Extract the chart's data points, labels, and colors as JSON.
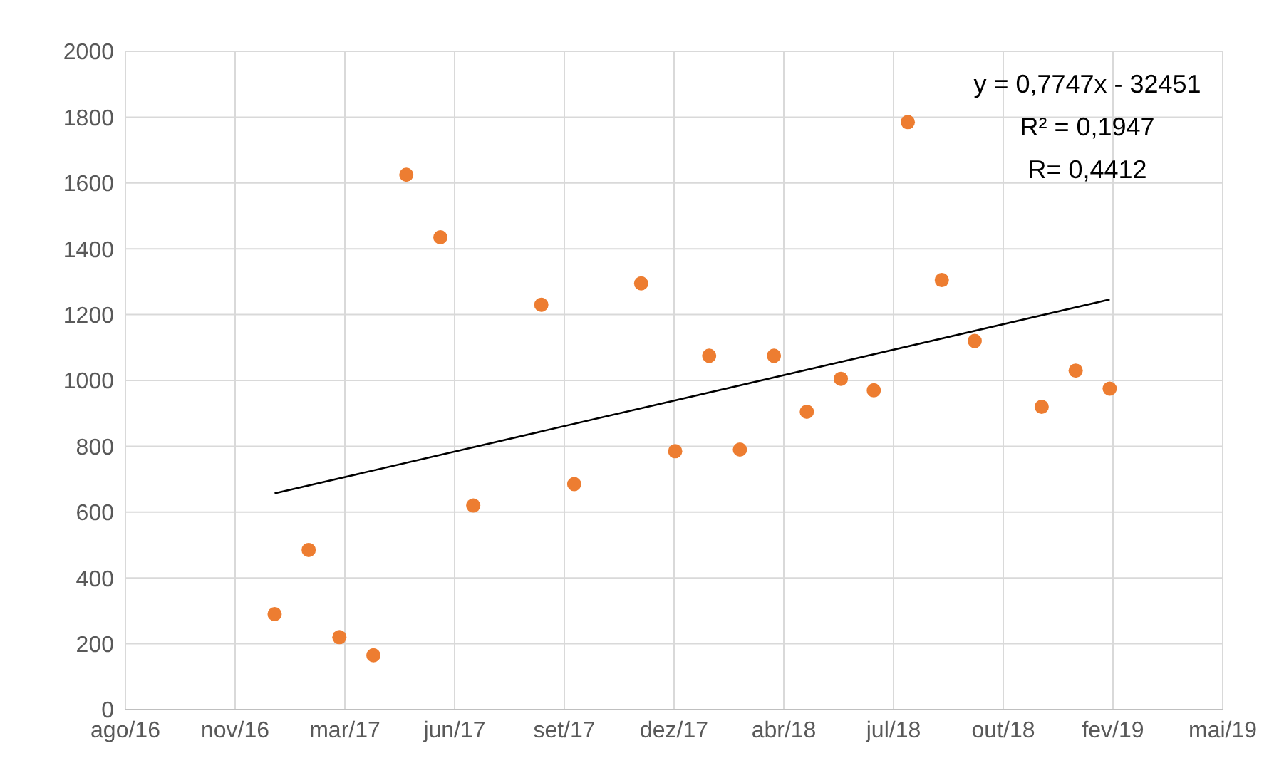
{
  "chart_data": {
    "type": "scatter",
    "annotations": [
      "y = 0,7747x - 32451",
      "R² = 0,1947",
      "R= 0,4412"
    ],
    "series": [
      {
        "marker": "circle",
        "color": "#ed7d31",
        "x": [
          "2017-01-01",
          "2017-02-01",
          "2017-03-01",
          "2017-04-01",
          "2017-05-01",
          "2017-06-01",
          "2017-07-01",
          "2017-09-01",
          "2017-10-01",
          "2017-12-01",
          "2018-01-01",
          "2018-02-01",
          "2018-03-01",
          "2018-04-01",
          "2018-05-01",
          "2018-06-01",
          "2018-07-01",
          "2018-08-01",
          "2018-09-01",
          "2018-10-01",
          "2018-12-01",
          "2019-01-01",
          "2019-02-01"
        ],
        "values": [
          290,
          485,
          220,
          165,
          1625,
          1435,
          620,
          1230,
          685,
          1295,
          785,
          1075,
          790,
          1075,
          905,
          1005,
          970,
          1785,
          1305,
          1120,
          920,
          1030,
          975
        ]
      },
      {
        "type": "line",
        "marker": "none",
        "color": "#000000",
        "x": [
          "2017-01-01",
          "2019-02-01"
        ],
        "values": [
          657,
          1246
        ]
      }
    ],
    "xlim": [
      "2016-08-18",
      "2019-05-15"
    ],
    "xticks": [
      {
        "value": "2016-08-18",
        "label": "ago/16"
      },
      {
        "value": "2016-11-26",
        "label": "nov/16"
      },
      {
        "value": "2017-03-06",
        "label": "mar/17"
      },
      {
        "value": "2017-06-14",
        "label": "jun/17"
      },
      {
        "value": "2017-09-22",
        "label": "set/17"
      },
      {
        "value": "2017-12-31",
        "label": "dez/17"
      },
      {
        "value": "2018-04-10",
        "label": "abr/18"
      },
      {
        "value": "2018-07-19",
        "label": "jul/18"
      },
      {
        "value": "2018-10-27",
        "label": "out/18"
      },
      {
        "value": "2019-02-04",
        "label": "fev/19"
      },
      {
        "value": "2019-05-15",
        "label": "mai/19"
      }
    ],
    "ylim": [
      0,
      2000
    ],
    "yticks": [
      0,
      200,
      400,
      600,
      800,
      1000,
      1200,
      1400,
      1600,
      1800,
      2000
    ],
    "grid": true
  }
}
